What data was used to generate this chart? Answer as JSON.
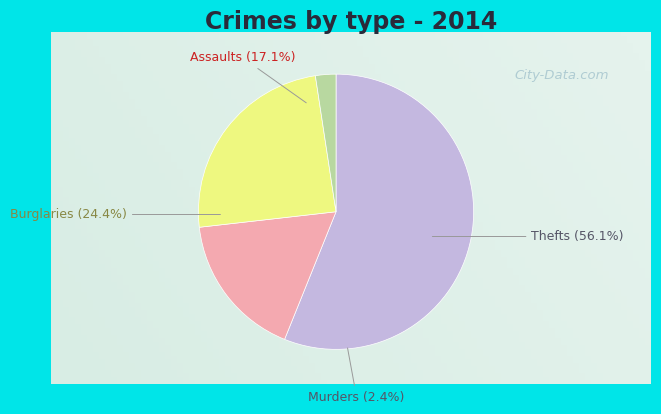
{
  "title": "Crimes by type - 2014",
  "slices": [
    {
      "label": "Thefts (56.1%)",
      "value": 56.1,
      "color": "#c4b8e0"
    },
    {
      "label": "Assaults (17.1%)",
      "value": 17.1,
      "color": "#f4a9b0"
    },
    {
      "label": "Burglaries (24.4%)",
      "value": 24.4,
      "color": "#eef880"
    },
    {
      "label": "Murders (2.4%)",
      "value": 2.4,
      "color": "#b8d8a0"
    }
  ],
  "background_cyan": "#00e5e8",
  "background_inner": "#d8ede4",
  "title_fontsize": 17,
  "label_fontsize": 9,
  "watermark": "City-Data.com",
  "startangle": 90,
  "label_colors": {
    "Thefts (56.1%)": "#555555",
    "Assaults (17.1%)": "#cc3333",
    "Burglaries (24.4%)": "#888855",
    "Murders (2.4%)": "#555555"
  }
}
